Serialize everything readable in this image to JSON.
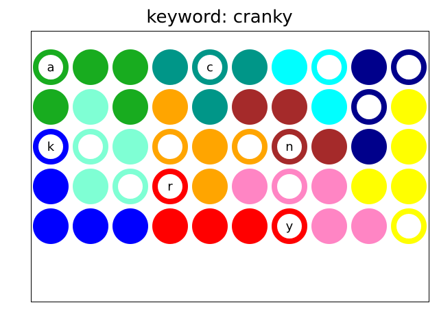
{
  "title": "keyword: cranky",
  "colors": {
    "green": "#18ac1f",
    "teal": "#009688",
    "cyan": "#00ffff",
    "navy": "#00008b",
    "aquamarine": "#7fffd4",
    "orange": "#ffa500",
    "brown": "#a52a2a",
    "yellow": "#ffff00",
    "blue": "#0000ff",
    "pink": "#ff85c4",
    "red": "#ff0000"
  },
  "grid": [
    [
      {
        "c": "green",
        "ring": true,
        "label": "a"
      },
      {
        "c": "green"
      },
      {
        "c": "green"
      },
      {
        "c": "teal"
      },
      {
        "c": "teal",
        "ring": true,
        "label": "c"
      },
      {
        "c": "teal"
      },
      {
        "c": "cyan"
      },
      {
        "c": "cyan",
        "ring": true
      },
      {
        "c": "navy"
      },
      {
        "c": "navy",
        "ring": true
      }
    ],
    [
      {
        "c": "green"
      },
      {
        "c": "aquamarine"
      },
      {
        "c": "green"
      },
      {
        "c": "orange"
      },
      {
        "c": "teal"
      },
      {
        "c": "brown"
      },
      {
        "c": "brown"
      },
      {
        "c": "cyan"
      },
      {
        "c": "navy",
        "ring": true
      },
      {
        "c": "yellow"
      }
    ],
    [
      {
        "c": "blue",
        "ring": true,
        "label": "k"
      },
      {
        "c": "aquamarine",
        "ring": true
      },
      {
        "c": "aquamarine"
      },
      {
        "c": "orange",
        "ring": true
      },
      {
        "c": "orange"
      },
      {
        "c": "orange",
        "ring": true
      },
      {
        "c": "brown",
        "ring": true,
        "label": "n"
      },
      {
        "c": "brown"
      },
      {
        "c": "navy"
      },
      {
        "c": "yellow"
      }
    ],
    [
      {
        "c": "blue"
      },
      {
        "c": "aquamarine"
      },
      {
        "c": "aquamarine",
        "ring": true
      },
      {
        "c": "red",
        "ring": true,
        "label": "r"
      },
      {
        "c": "orange"
      },
      {
        "c": "pink"
      },
      {
        "c": "pink",
        "ring": true
      },
      {
        "c": "pink"
      },
      {
        "c": "yellow"
      },
      {
        "c": "yellow"
      }
    ],
    [
      {
        "c": "blue"
      },
      {
        "c": "blue"
      },
      {
        "c": "blue"
      },
      {
        "c": "red"
      },
      {
        "c": "red"
      },
      {
        "c": "red"
      },
      {
        "c": "red",
        "ring": true,
        "label": "y"
      },
      {
        "c": "pink"
      },
      {
        "c": "pink"
      },
      {
        "c": "yellow",
        "ring": true
      }
    ]
  ]
}
